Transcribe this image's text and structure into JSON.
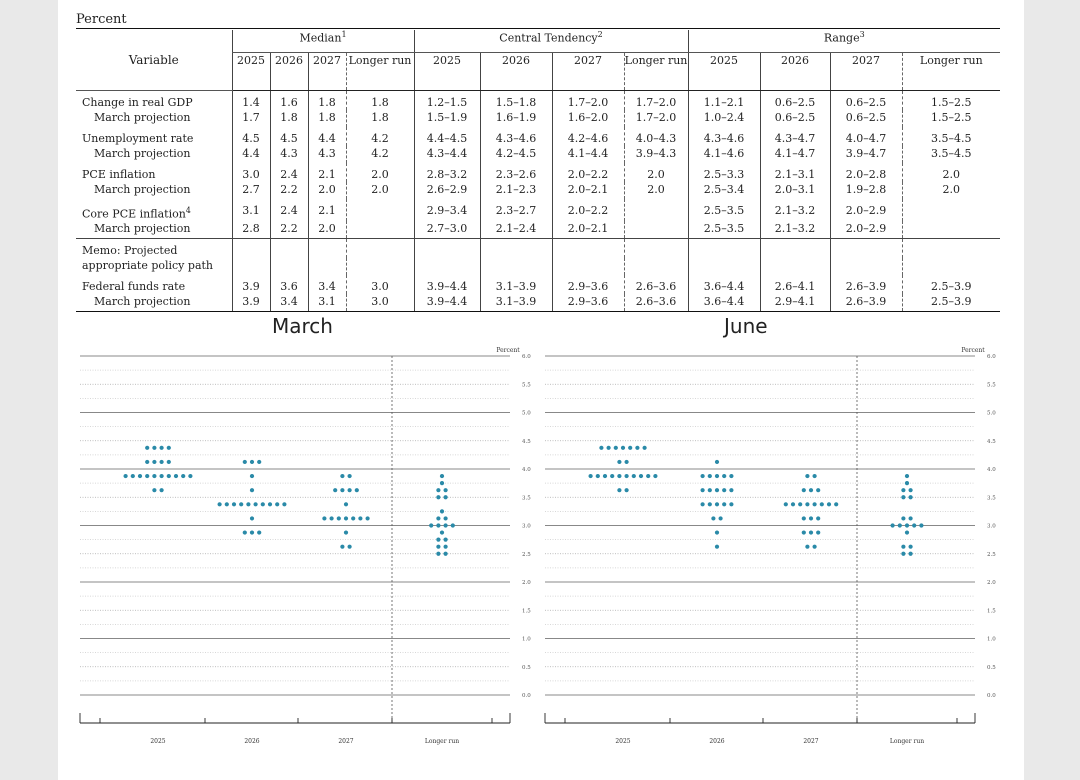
{
  "table": {
    "unit_caption": "Percent",
    "variable_header": "Variable",
    "groups": [
      {
        "label": "Median",
        "note": "1"
      },
      {
        "label": "Central Tendency",
        "note": "2"
      },
      {
        "label": "Range",
        "note": "3"
      }
    ],
    "year_headers": [
      "2025",
      "2026",
      "2027",
      "Longer run"
    ],
    "sections": [
      {
        "label": "Change in real GDP",
        "note": "",
        "values": [
          "1.4",
          "1.6",
          "1.8",
          "1.8",
          "1.2–1.5",
          "1.5–1.8",
          "1.7–2.0",
          "1.7–2.0",
          "1.1–2.1",
          "0.6–2.5",
          "0.6–2.5",
          "1.5–2.5"
        ],
        "march_label": "March projection",
        "march": [
          "1.7",
          "1.8",
          "1.8",
          "1.8",
          "1.5–1.9",
          "1.6–1.9",
          "1.6–2.0",
          "1.7–2.0",
          "1.0–2.4",
          "0.6–2.5",
          "0.6–2.5",
          "1.5–2.5"
        ]
      },
      {
        "label": "Unemployment rate",
        "note": "",
        "values": [
          "4.5",
          "4.5",
          "4.4",
          "4.2",
          "4.4–4.5",
          "4.3–4.6",
          "4.2–4.6",
          "4.0–4.3",
          "4.3–4.6",
          "4.3–4.7",
          "4.0–4.7",
          "3.5–4.5"
        ],
        "march_label": "March projection",
        "march": [
          "4.4",
          "4.3",
          "4.3",
          "4.2",
          "4.3–4.4",
          "4.2–4.5",
          "4.1–4.4",
          "3.9–4.3",
          "4.1–4.6",
          "4.1–4.7",
          "3.9–4.7",
          "3.5–4.5"
        ]
      },
      {
        "label": "PCE inflation",
        "note": "",
        "values": [
          "3.0",
          "2.4",
          "2.1",
          "2.0",
          "2.8–3.2",
          "2.3–2.6",
          "2.0–2.2",
          "2.0",
          "2.5–3.3",
          "2.1–3.1",
          "2.0–2.8",
          "2.0"
        ],
        "march_label": "March projection",
        "march": [
          "2.7",
          "2.2",
          "2.0",
          "2.0",
          "2.6–2.9",
          "2.1–2.3",
          "2.0–2.1",
          "2.0",
          "2.5–3.4",
          "2.0–3.1",
          "1.9–2.8",
          "2.0"
        ]
      },
      {
        "label": "Core PCE inflation",
        "note": "4",
        "values": [
          "3.1",
          "2.4",
          "2.1",
          "",
          "2.9–3.4",
          "2.3–2.7",
          "2.0–2.2",
          "",
          "2.5–3.5",
          "2.1–3.2",
          "2.0–2.9",
          ""
        ],
        "march_label": "March projection",
        "march": [
          "2.8",
          "2.2",
          "2.0",
          "",
          "2.7–3.0",
          "2.1–2.4",
          "2.0–2.1",
          "",
          "2.5–3.5",
          "2.1–3.2",
          "2.0–2.9",
          ""
        ]
      }
    ],
    "memo": {
      "line1": "Memo: Projected",
      "line2": "appropriate policy path"
    },
    "fed_funds": {
      "label": "Federal funds rate",
      "values": [
        "3.9",
        "3.6",
        "3.4",
        "3.0",
        "3.9–4.4",
        "3.1–3.9",
        "2.9–3.6",
        "2.6–3.6",
        "3.6–4.4",
        "2.6–4.1",
        "2.6–3.9",
        "2.5–3.9"
      ],
      "march_label": "March projection",
      "march": [
        "3.9",
        "3.4",
        "3.1",
        "3.0",
        "3.9–4.4",
        "3.1–3.9",
        "2.9–3.6",
        "2.6–3.6",
        "3.6–4.4",
        "2.9–4.1",
        "2.6–3.9",
        "2.5–3.9"
      ]
    }
  },
  "chart_data": [
    {
      "type": "scatter",
      "title": "March",
      "ylabel": "Percent",
      "ylim": [
        0,
        6.0
      ],
      "yticks": [
        "0.0",
        "0.5",
        "1.0",
        "1.5",
        "2.0",
        "2.5",
        "3.0",
        "3.5",
        "4.0",
        "4.5",
        "5.0",
        "5.5",
        "6.0"
      ],
      "categories": [
        "2025",
        "2026",
        "2027",
        "Longer run"
      ],
      "dot_color": "#2a8aa8",
      "dots": [
        {
          "category": "2025",
          "levels": [
            [
              4.375,
              4
            ],
            [
              4.125,
              4
            ],
            [
              3.875,
              10
            ],
            [
              3.625,
              2
            ]
          ]
        },
        {
          "category": "2026",
          "levels": [
            [
              4.125,
              3
            ],
            [
              3.875,
              1
            ],
            [
              3.625,
              1
            ],
            [
              3.375,
              10
            ],
            [
              3.125,
              1
            ],
            [
              2.875,
              3
            ]
          ]
        },
        {
          "category": "2027",
          "levels": [
            [
              3.875,
              2
            ],
            [
              3.625,
              4
            ],
            [
              3.375,
              1
            ],
            [
              3.125,
              7
            ],
            [
              2.875,
              1
            ],
            [
              2.625,
              2
            ]
          ]
        },
        {
          "category": "Longer run",
          "levels": [
            [
              3.875,
              1
            ],
            [
              3.75,
              1
            ],
            [
              3.625,
              2
            ],
            [
              3.5,
              2
            ],
            [
              3.25,
              1
            ],
            [
              3.125,
              2
            ],
            [
              3.0,
              4
            ],
            [
              2.875,
              1
            ],
            [
              2.75,
              2
            ],
            [
              2.625,
              2
            ],
            [
              2.5,
              2
            ]
          ]
        }
      ]
    },
    {
      "type": "scatter",
      "title": "June",
      "ylabel": "Percent",
      "ylim": [
        0,
        6.0
      ],
      "yticks": [
        "0.0",
        "0.5",
        "1.0",
        "1.5",
        "2.0",
        "2.5",
        "3.0",
        "3.5",
        "4.0",
        "4.5",
        "5.0",
        "5.5",
        "6.0"
      ],
      "categories": [
        "2025",
        "2026",
        "2027",
        "Longer run"
      ],
      "dot_color": "#2a8aa8",
      "dots": [
        {
          "category": "2025",
          "levels": [
            [
              4.375,
              7
            ],
            [
              4.125,
              2
            ],
            [
              3.875,
              10
            ],
            [
              3.625,
              2
            ]
          ]
        },
        {
          "category": "2026",
          "levels": [
            [
              4.125,
              1
            ],
            [
              3.875,
              5
            ],
            [
              3.625,
              5
            ],
            [
              3.375,
              5
            ],
            [
              3.125,
              2
            ],
            [
              2.875,
              1
            ],
            [
              2.625,
              1
            ]
          ]
        },
        {
          "category": "2027",
          "levels": [
            [
              3.875,
              2
            ],
            [
              3.625,
              3
            ],
            [
              3.375,
              8
            ],
            [
              3.125,
              3
            ],
            [
              2.875,
              3
            ],
            [
              2.625,
              2
            ]
          ]
        },
        {
          "category": "Longer run",
          "levels": [
            [
              3.875,
              1
            ],
            [
              3.75,
              1
            ],
            [
              3.625,
              2
            ],
            [
              3.5,
              2
            ],
            [
              3.125,
              2
            ],
            [
              3.0,
              5
            ],
            [
              2.875,
              1
            ],
            [
              2.625,
              2
            ],
            [
              2.5,
              2
            ]
          ]
        }
      ]
    }
  ]
}
